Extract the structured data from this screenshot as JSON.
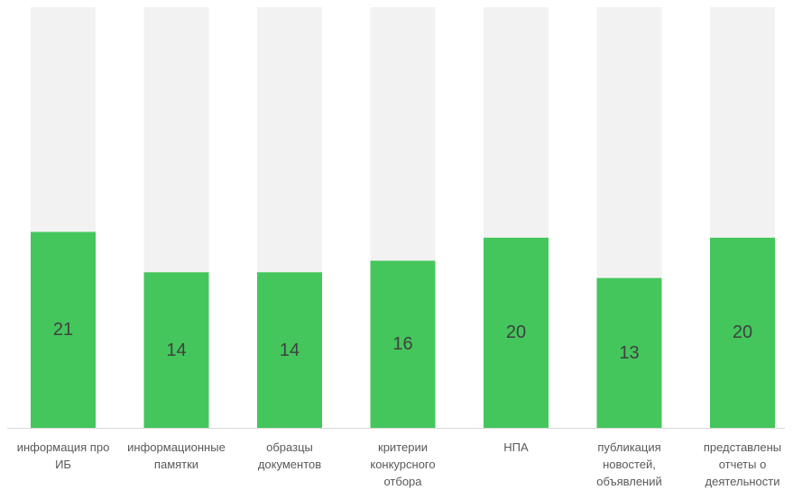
{
  "chart_data": {
    "type": "bar",
    "categories": [
      "информация про ИБ",
      "информационные памятки",
      "образцы документов",
      "критерии конкурсного отбора",
      "НПА",
      "публикация новостей, объявлений",
      "представлены отчеты о деятельности"
    ],
    "values": [
      21,
      14,
      14,
      16,
      20,
      13,
      20
    ],
    "ylim": [
      -13,
      60
    ],
    "grid": false
  },
  "colors": {
    "bar": "#44c65c",
    "bar_background": "#f2f2f2",
    "axis_line": "#d9d9d9",
    "data_label": "#404040",
    "category_label": "#595959"
  }
}
